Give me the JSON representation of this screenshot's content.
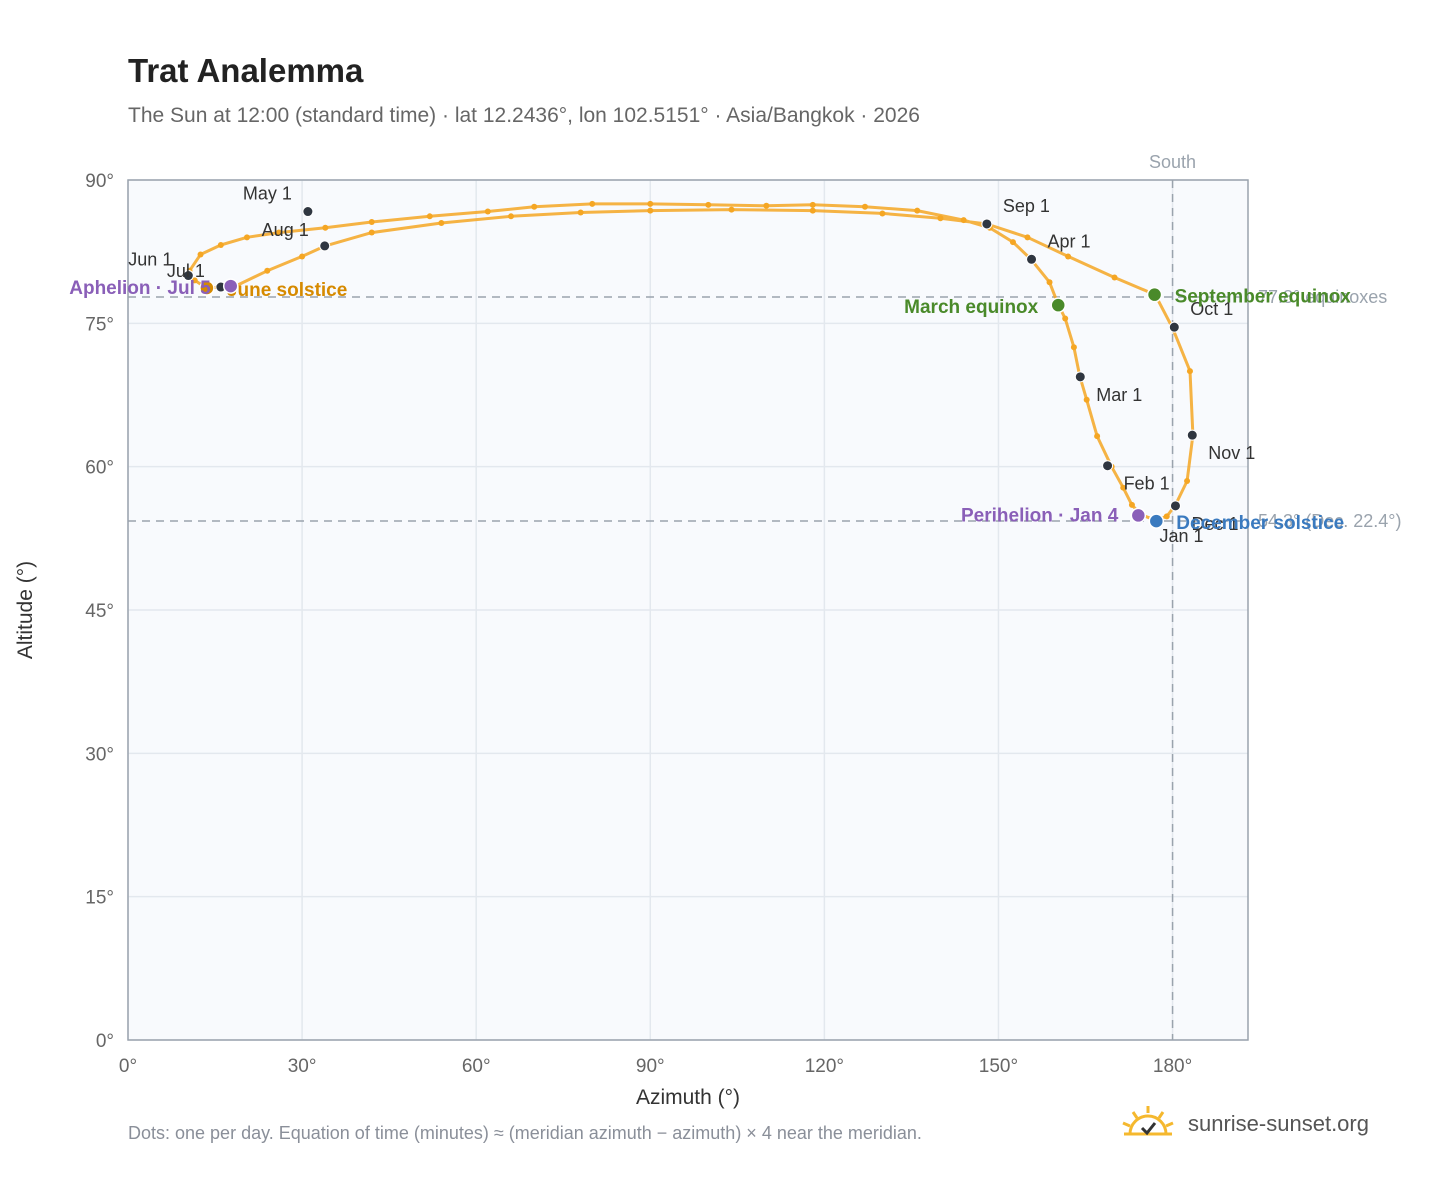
{
  "header": {
    "title": "Trat Analemma",
    "subtitle": "The Sun at 12:00 (standard time) · lat 12.2436°, lon 102.5151° · Asia/Bangkok · 2026"
  },
  "footer": {
    "note": "Dots: one per day. Equation of time (minutes) ≈ (meridian azimuth − azimuth) × 4 near the meridian.",
    "brand": "sunrise-sunset.org"
  },
  "colors": {
    "analemma": "#f5a623",
    "month_marker": "#2f3640",
    "equinox": "#4a8a2a",
    "solstice_june": "#d68a00",
    "solstice_december": "#3a7abf",
    "apsis": "#8a5fb8",
    "reference_line": "#9aa3ad"
  },
  "chart_data": {
    "type": "scatter",
    "xlabel": "Azimuth (°)",
    "ylabel": "Altitude (°)",
    "xlim": [
      0,
      193
    ],
    "ylim": [
      0,
      90
    ],
    "x_ticks": [
      0,
      30,
      60,
      90,
      120,
      150,
      180
    ],
    "x_tick_labels": [
      "0°",
      "30°",
      "60°",
      "90°",
      "120°",
      "150°",
      "180°"
    ],
    "y_ticks": [
      0,
      15,
      30,
      45,
      60,
      75,
      90
    ],
    "y_tick_labels": [
      "0°",
      "15°",
      "30°",
      "45°",
      "60°",
      "75°",
      "90°"
    ],
    "grid": true,
    "series": [
      {
        "marker": "daily-dot",
        "points": [
          [
            177.0,
            54.4
          ],
          [
            174.5,
            55.0
          ],
          [
            173.0,
            56.0
          ],
          [
            171.5,
            57.8
          ],
          [
            169.5,
            60.0
          ],
          [
            167.0,
            63.2
          ],
          [
            165.2,
            67.0
          ],
          [
            164.0,
            69.5
          ],
          [
            163.0,
            72.5
          ],
          [
            161.5,
            75.5
          ],
          [
            160.2,
            77.1
          ],
          [
            158.8,
            79.3
          ],
          [
            155.6,
            81.7
          ],
          [
            152.5,
            83.5
          ],
          [
            148.5,
            85.0
          ],
          [
            144.0,
            85.8
          ],
          [
            136.0,
            86.8
          ],
          [
            127.0,
            87.2
          ],
          [
            118.0,
            87.4
          ],
          [
            110.0,
            87.3
          ],
          [
            100.0,
            87.4
          ],
          [
            90.0,
            87.5
          ],
          [
            80.0,
            87.5
          ],
          [
            70.0,
            87.2
          ],
          [
            62.0,
            86.7
          ],
          [
            52.0,
            86.2
          ],
          [
            42.0,
            85.6
          ],
          [
            34.0,
            85.0
          ],
          [
            26.0,
            84.5
          ],
          [
            20.5,
            84.0
          ],
          [
            16.0,
            83.2
          ],
          [
            12.5,
            82.2
          ],
          [
            10.6,
            80.5
          ],
          [
            10.5,
            80.0
          ],
          [
            11.5,
            79.5
          ],
          [
            13.5,
            78.7
          ],
          [
            16.5,
            78.8
          ],
          [
            18.5,
            78.9
          ],
          [
            24.0,
            80.5
          ],
          [
            30.0,
            82.0
          ],
          [
            34.0,
            83.1
          ],
          [
            42.0,
            84.5
          ],
          [
            54.0,
            85.5
          ],
          [
            66.0,
            86.2
          ],
          [
            78.0,
            86.6
          ],
          [
            90.0,
            86.8
          ],
          [
            104.0,
            86.9
          ],
          [
            118.0,
            86.8
          ],
          [
            130.0,
            86.5
          ],
          [
            140.0,
            86.0
          ],
          [
            148.0,
            85.4
          ],
          [
            155.0,
            84.0
          ],
          [
            162.0,
            82.0
          ],
          [
            170.0,
            79.8
          ],
          [
            177.0,
            78.0
          ],
          [
            180.0,
            74.5
          ],
          [
            183.0,
            70.0
          ],
          [
            183.5,
            63.3
          ],
          [
            182.5,
            58.5
          ],
          [
            180.5,
            56.0
          ],
          [
            179.0,
            54.8
          ],
          [
            177.0,
            54.4
          ]
        ]
      }
    ],
    "month_markers": [
      {
        "label": "Jan 1",
        "x": 177.4,
        "y": 54.4
      },
      {
        "label": "Feb 1",
        "x": 168.8,
        "y": 60.1
      },
      {
        "label": "Mar 1",
        "x": 164.1,
        "y": 69.4
      },
      {
        "label": "Apr 1",
        "x": 155.7,
        "y": 81.7
      },
      {
        "label": "May 1",
        "x": 31.0,
        "y": 86.7
      },
      {
        "label": "Jun 1",
        "x": 10.4,
        "y": 80.0
      },
      {
        "label": "Jul 1",
        "x": 16.0,
        "y": 78.8
      },
      {
        "label": "Aug 1",
        "x": 33.9,
        "y": 83.1
      },
      {
        "label": "Sep 1",
        "x": 148.0,
        "y": 85.4
      },
      {
        "label": "Oct 1",
        "x": 180.3,
        "y": 74.6
      },
      {
        "label": "Nov 1",
        "x": 183.4,
        "y": 63.3
      },
      {
        "label": "Dec 1",
        "x": 180.5,
        "y": 55.9
      }
    ],
    "events": [
      {
        "label": "March equinox",
        "kind": "equinox",
        "x": 160.3,
        "y": 76.9
      },
      {
        "label": "September equinox",
        "kind": "equinox",
        "x": 176.9,
        "y": 78.0
      },
      {
        "label": "June solstice",
        "kind": "solstice_june",
        "x": 13.6,
        "y": 78.7
      },
      {
        "label": "December solstice",
        "kind": "solstice_december",
        "x": 177.2,
        "y": 54.3
      },
      {
        "label": "Aphelion · Jul 5",
        "kind": "apsis",
        "x": 17.7,
        "y": 78.9
      },
      {
        "label": "Perihelion · Jan 4",
        "kind": "apsis",
        "x": 174.1,
        "y": 54.9
      }
    ],
    "reference_lines": [
      {
        "axis": "y",
        "value": 77.76,
        "label": "77.8° equinoxes"
      },
      {
        "axis": "y",
        "value": 54.31,
        "label": "54.3° (Dec. 22.4°)"
      },
      {
        "axis": "x",
        "value": 180,
        "label": "South"
      }
    ]
  }
}
